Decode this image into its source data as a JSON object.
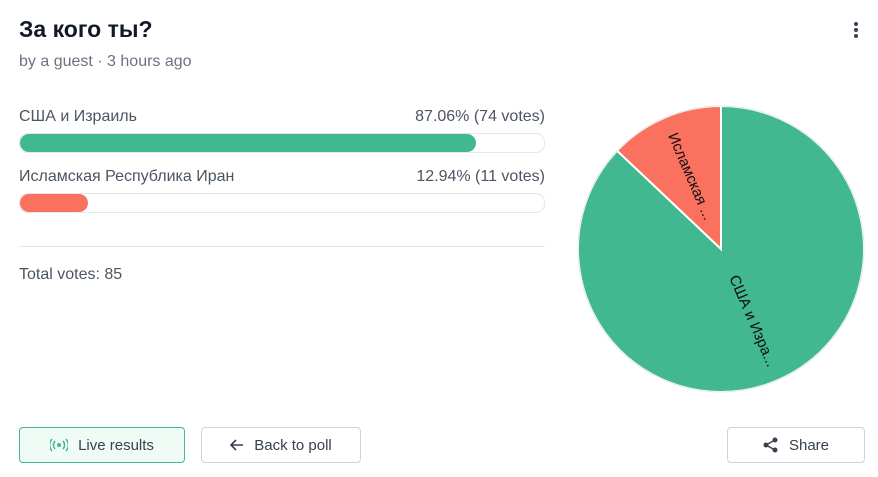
{
  "header": {
    "title": "За кого ты?",
    "subtitle": "by a guest · 3 hours ago"
  },
  "options": [
    {
      "label": "США и Израиль",
      "result": "87.06% (74 votes)",
      "percent": 87.06,
      "pie_label": "США и Изра...",
      "color": "#41b88f"
    },
    {
      "label": "Исламская Республика Иран",
      "result": "12.94% (11 votes)",
      "percent": 12.94,
      "pie_label": "Исламская ...",
      "color": "#fa7160"
    }
  ],
  "total": "Total votes: 85",
  "buttons": {
    "live": "Live results",
    "back": "Back to poll",
    "share": "Share"
  }
}
